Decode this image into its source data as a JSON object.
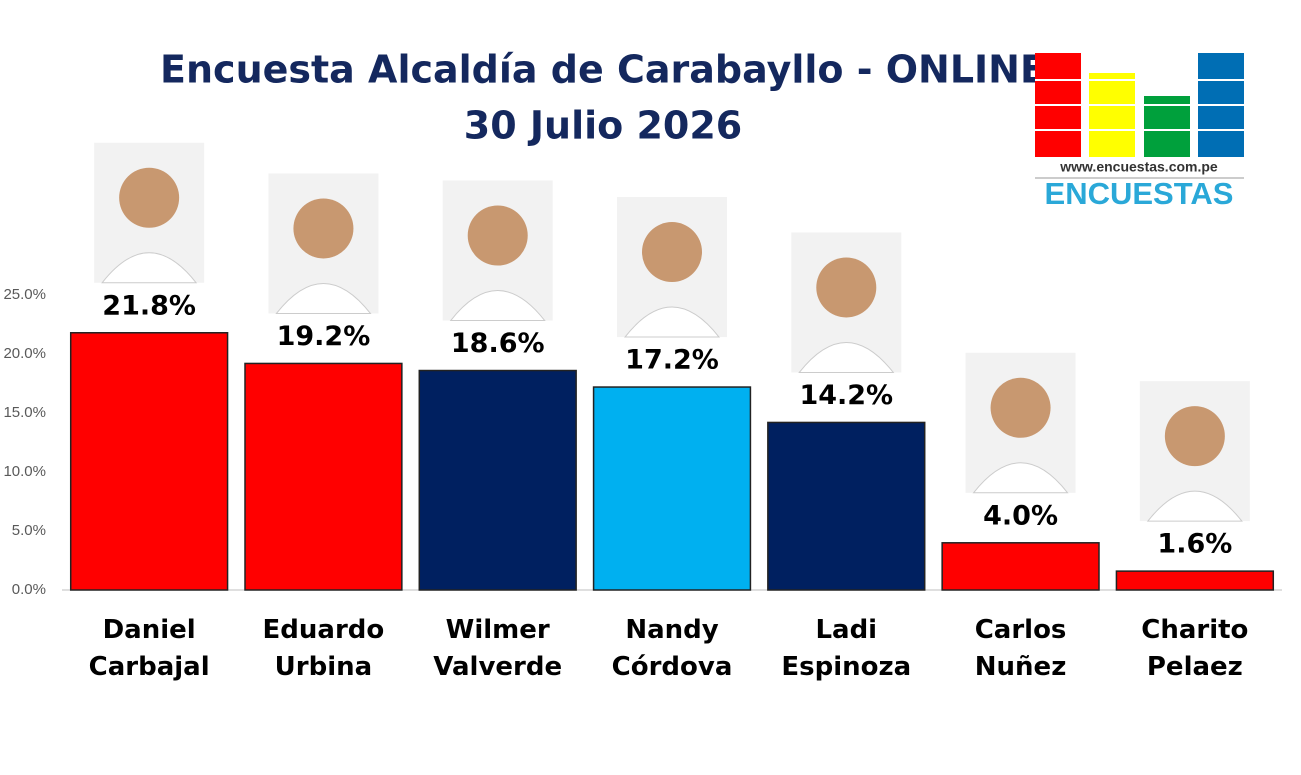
{
  "chart_data": {
    "type": "bar",
    "title": "Encuesta Alcaldía de Carabayllo - ONLINE",
    "subtitle": "30 Julio 2026",
    "categories": [
      "Daniel Carbajal",
      "Eduardo Urbina",
      "Wilmer Valverde",
      "Nandy Córdova",
      "Ladi Espinoza",
      "Carlos Nuñez",
      "Charito Pelaez"
    ],
    "values": [
      21.8,
      19.2,
      18.6,
      17.2,
      14.2,
      4.0,
      1.6
    ],
    "value_labels": [
      "21.8%",
      "19.2%",
      "18.6%",
      "17.2%",
      "14.2%",
      "4.0%",
      "1.6%"
    ],
    "colors": [
      "#ff0000",
      "#ff0000",
      "#002060",
      "#00b0f0",
      "#002060",
      "#ff0000",
      "#ff0000"
    ],
    "ylim": [
      0,
      25
    ],
    "yticks": [
      {
        "value": 0,
        "label": "0.0%"
      },
      {
        "value": 5,
        "label": "5.0%"
      },
      {
        "value": 10,
        "label": "10.0%"
      },
      {
        "value": 15,
        "label": "15.0%"
      },
      {
        "value": 20,
        "label": "20.0%"
      },
      {
        "value": 25,
        "label": "25.0%"
      }
    ],
    "grid": false
  },
  "logo": {
    "url": "www.encuestas.com.pe",
    "name": "ENCUESTAS"
  }
}
